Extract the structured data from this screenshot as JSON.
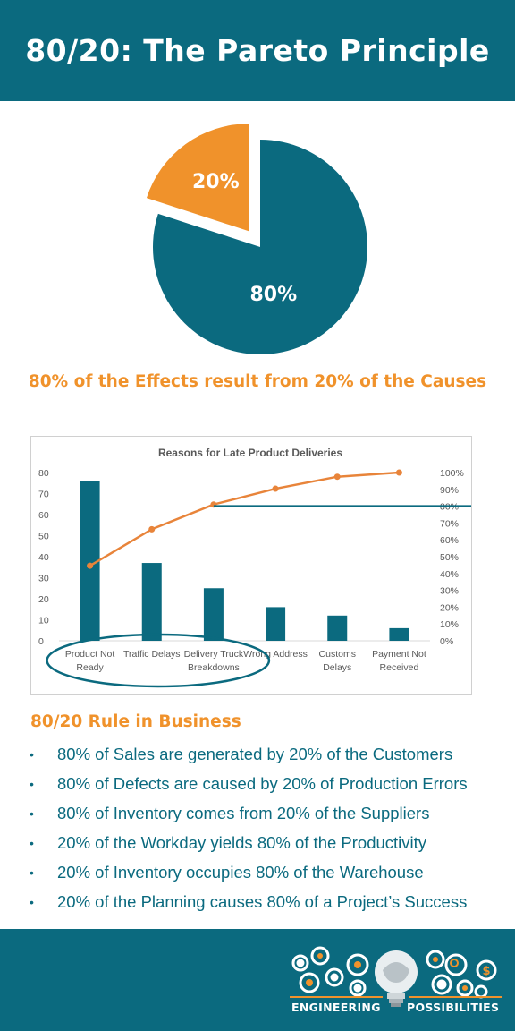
{
  "header": {
    "title": "80/20: The Pareto Principle"
  },
  "pie": {
    "slices": [
      {
        "label": "80%",
        "value": 80,
        "color": "#0b6a7f"
      },
      {
        "label": "20%",
        "value": 20,
        "color": "#f0922b"
      }
    ]
  },
  "tagline": "80% of the Effects result from 20% of the Causes",
  "chart_data": [
    {
      "type": "pie",
      "categories": [
        "80%",
        "20%"
      ],
      "values": [
        80,
        20
      ],
      "colors": [
        "#0b6a7f",
        "#f0922b"
      ],
      "exploded": "20%"
    },
    {
      "type": "bar",
      "title": "Reasons for Late Product Deliveries",
      "categories": [
        [
          "Product Not",
          "Ready"
        ],
        [
          "Traffic Delays"
        ],
        [
          "Delivery Truck",
          "Breakdowns"
        ],
        [
          "Wrong Address"
        ],
        [
          "Customs",
          "Delays"
        ],
        [
          "Payment Not",
          "Received"
        ]
      ],
      "series": [
        {
          "type": "bar",
          "values": [
            76,
            37,
            25,
            16,
            12,
            6
          ],
          "color": "#0b6a7f",
          "axis": "left"
        },
        {
          "type": "line",
          "values": [
            44.6,
            66.3,
            81,
            90.4,
            97.5,
            100
          ],
          "color": "#e8843a",
          "axis": "right"
        }
      ],
      "ylim": [
        0,
        80
      ],
      "yticks": [
        "0",
        "10",
        "20",
        "30",
        "40",
        "50",
        "60",
        "70",
        "80"
      ],
      "y2lim": [
        0,
        100
      ],
      "y2ticks": [
        "0%",
        "10%",
        "20%",
        "30%",
        "40%",
        "50%",
        "60%",
        "70%",
        "80%",
        "90%",
        "100%"
      ],
      "reference_line": {
        "value": 80,
        "axis": "right",
        "from_category": 2,
        "color": "#0b6a7f"
      },
      "highlight_ellipse": {
        "categories": [
          0,
          1,
          2
        ],
        "color": "#0b6a7f"
      },
      "grid": false
    }
  ],
  "rules": {
    "title": "80/20 Rule in Business",
    "bullet": "•",
    "items": [
      "80% of Sales are generated by 20% of the Customers",
      "80% of Defects are caused by 20% of Production Errors",
      "80% of Inventory comes from 20% of the Suppliers",
      "20% of the Workday yields 80% of the Productivity",
      "20% of Inventory occupies 80% of the Warehouse",
      "20% of the Planning causes 80% of a Project’s Success"
    ]
  },
  "footer": {
    "logo_left": "ENGINEERING",
    "logo_right": "POSSIBILITIES",
    "logo_icons": [
      "gear-icon",
      "lightbulb-icon",
      "brain-icon",
      "dollar-icon",
      "magnifier-icon"
    ]
  }
}
